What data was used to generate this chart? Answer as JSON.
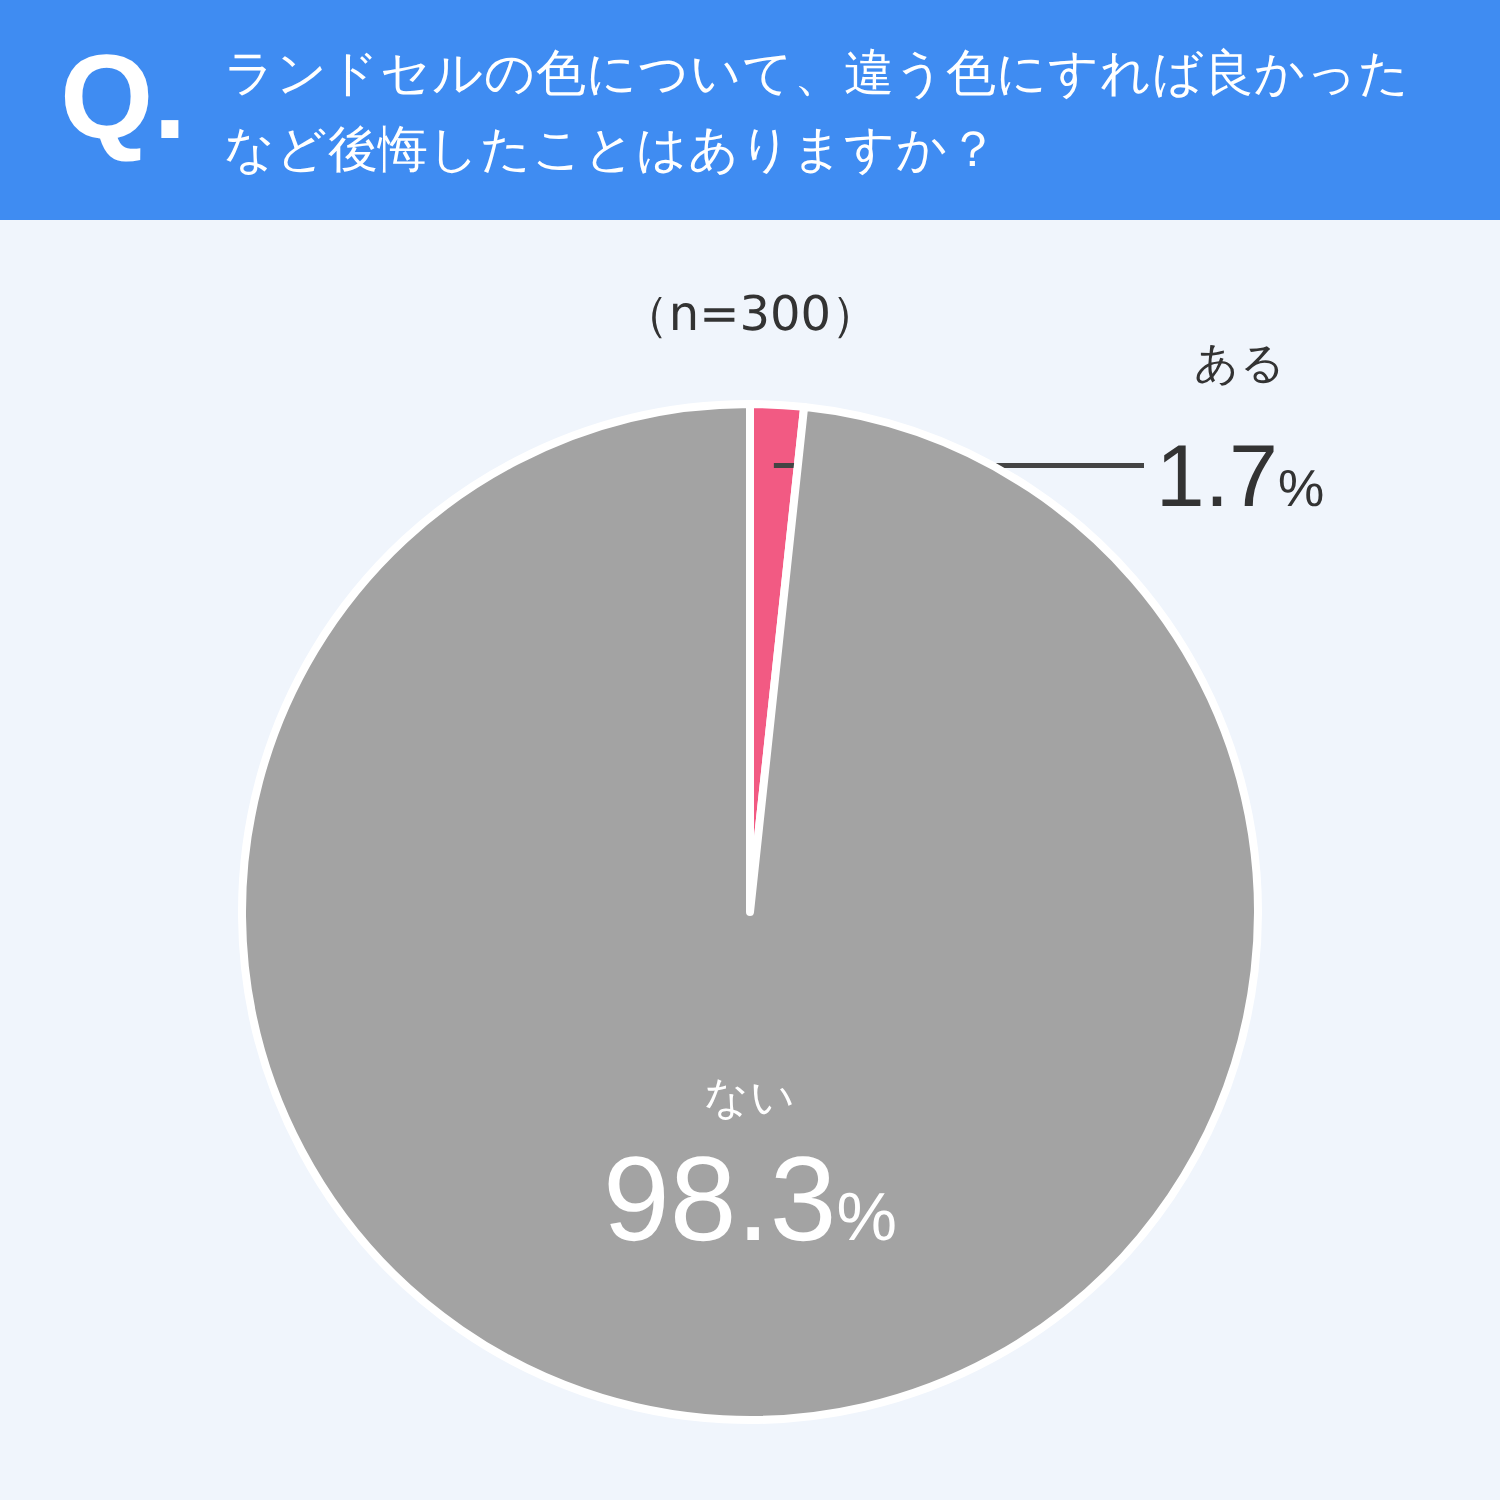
{
  "chart_data": {
    "type": "pie",
    "title": "ランドセルの色について、違う色にすれば良かったなど後悔したことはありますか？",
    "subtitle": "（n=300）",
    "annotations": [
      "Q."
    ],
    "categories": [
      "ある",
      "ない"
    ],
    "values": [
      1.7,
      98.3
    ],
    "colors": [
      "#f25a83",
      "#a3a3a3"
    ],
    "value_labels": [
      "1.7%",
      "98.3%"
    ]
  }
}
